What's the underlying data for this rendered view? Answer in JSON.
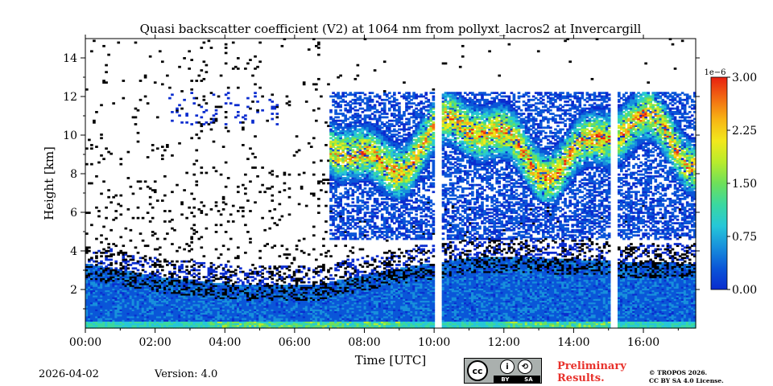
{
  "chart_data": {
    "type": "heatmap",
    "title": "Quasi backscatter coefficient (V2) at 1064 nm from pollyxt_lacros2 at Invercargill",
    "xlabel": "Time [UTC]",
    "ylabel": "Height [km]",
    "xlim": [
      0,
      17.5
    ],
    "ylim": [
      0,
      15
    ],
    "x_ticks": [
      0,
      2,
      4,
      6,
      8,
      10,
      12,
      14,
      16
    ],
    "x_tick_labels": [
      "00:00",
      "02:00",
      "04:00",
      "06:00",
      "08:00",
      "10:00",
      "12:00",
      "14:00",
      "16:00"
    ],
    "y_ticks": [
      2,
      4,
      6,
      8,
      10,
      12,
      14
    ],
    "y_tick_labels": [
      "2",
      "4",
      "6",
      "8",
      "10",
      "12",
      "14"
    ],
    "colorbar": {
      "min": 0.0,
      "max": 3.0,
      "ticks": [
        0.0,
        0.75,
        1.5,
        2.25,
        3.0
      ],
      "tick_labels": [
        "0.00",
        "0.75",
        "1.50",
        "2.25",
        "3.00"
      ],
      "exponent_label": "1e−6",
      "colormap": [
        "#0a2ccf",
        "#0a56d8",
        "#1890dc",
        "#26c7d8",
        "#3ad8a0",
        "#6ee05a",
        "#b8ec2c",
        "#f2e81c",
        "#f7b514",
        "#f26b12",
        "#e82010"
      ]
    },
    "data_gaps_hours": [
      [
        10.0,
        10.18
      ],
      [
        15.05,
        15.2
      ]
    ],
    "regions": [
      {
        "name": "aerosol_boundary_layer",
        "t_start": 0,
        "t_end": 17.5,
        "height_top_km": [
          3.3,
          2.6,
          2.2,
          2.2,
          3.0,
          3.6,
          3.6,
          3.4,
          3.3
        ],
        "value_range": [
          0.1,
          0.6
        ]
      },
      {
        "name": "surface_layer",
        "t_start": 0,
        "t_end": 17.5,
        "height_top_km": 0.3,
        "value_range": [
          0.8,
          1.8
        ]
      },
      {
        "name": "cirrus",
        "t_start": 7.0,
        "t_end": 17.5,
        "height_range_km": [
          6.5,
          12.2
        ],
        "value_range": [
          0.3,
          3.0
        ]
      },
      {
        "name": "high_sparse_noise",
        "t_start": 2.3,
        "t_end": 5.5,
        "height_range_km": [
          10.5,
          12.2
        ],
        "value_range": [
          0.0,
          0.3
        ]
      }
    ]
  },
  "footer": {
    "date": "2026-04-02",
    "version": "Version: 4.0",
    "preliminary_line1": "Preliminary",
    "preliminary_line2": "Results.",
    "copyright_line1": "© TROPOS 2026.",
    "copyright_line2": "CC BY SA 4.0 License.",
    "license_badge_cc": "cc",
    "license_badge_by": "BY",
    "license_badge_sa": "SA"
  }
}
